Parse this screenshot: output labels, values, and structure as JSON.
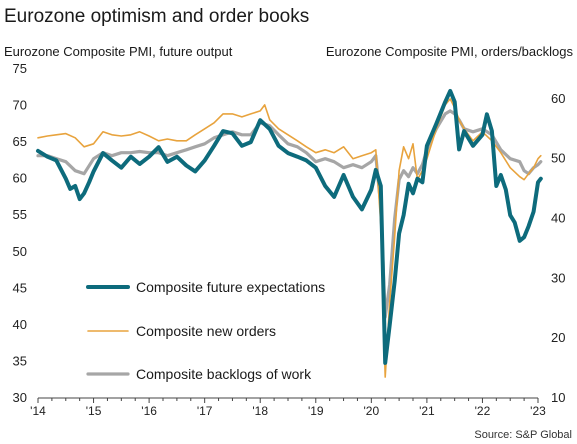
{
  "chart_data": {
    "type": "line",
    "title": "Eurozone optimism and order books",
    "left_axis_label": "Eurozone Composite PMI, future output",
    "right_axis_label": "Eurozone Composite PMI, orders/backlogs",
    "source": "Source: S&P Global",
    "left_ylim": [
      30,
      75
    ],
    "left_ticks": [
      "75",
      "70",
      "65",
      "60",
      "55",
      "50",
      "45",
      "40",
      "35",
      "30"
    ],
    "right_ylim": [
      10,
      65
    ],
    "right_ticks": [
      "60",
      "50",
      "40",
      "30",
      "20",
      "10"
    ],
    "x_ticks": [
      "'14",
      "'15",
      "'16",
      "'17",
      "'18",
      "'19",
      "'20",
      "'21",
      "'22",
      "'23"
    ],
    "grid": false,
    "legend_position": "lower-left",
    "series": [
      {
        "name": "Composite future expectations",
        "axis": "left",
        "color": "#0d6b7c",
        "x": [
          2014.0,
          2014.17,
          2014.33,
          2014.5,
          2014.58,
          2014.67,
          2014.75,
          2014.83,
          2014.92,
          2015.0,
          2015.17,
          2015.33,
          2015.5,
          2015.67,
          2015.83,
          2016.0,
          2016.17,
          2016.33,
          2016.5,
          2016.67,
          2016.83,
          2017.0,
          2017.17,
          2017.33,
          2017.5,
          2017.67,
          2017.83,
          2018.0,
          2018.17,
          2018.33,
          2018.5,
          2018.67,
          2018.83,
          2019.0,
          2019.17,
          2019.33,
          2019.5,
          2019.67,
          2019.83,
          2020.0,
          2020.08,
          2020.17,
          2020.25,
          2020.33,
          2020.42,
          2020.5,
          2020.58,
          2020.67,
          2020.75,
          2020.83,
          2020.92,
          2021.0,
          2021.17,
          2021.33,
          2021.42,
          2021.5,
          2021.58,
          2021.67,
          2021.83,
          2022.0,
          2022.08,
          2022.17,
          2022.25,
          2022.33,
          2022.42,
          2022.5,
          2022.58,
          2022.67,
          2022.75,
          2022.83,
          2022.92,
          2023.0,
          2023.05
        ],
        "values": [
          63.8,
          63.0,
          62.5,
          60.0,
          58.6,
          59.0,
          57.2,
          58.0,
          59.5,
          61.0,
          63.5,
          62.5,
          61.5,
          63.0,
          62.0,
          63.0,
          64.3,
          62.3,
          63.0,
          61.8,
          61.0,
          62.5,
          64.5,
          66.5,
          66.2,
          64.5,
          65.0,
          68.0,
          66.8,
          64.5,
          63.5,
          63.0,
          62.5,
          61.5,
          59.0,
          57.5,
          60.5,
          57.5,
          55.8,
          58.5,
          61.2,
          59.0,
          34.8,
          40.0,
          46.0,
          52.5,
          55.0,
          59.3,
          58.0,
          60.0,
          59.5,
          64.5,
          67.5,
          70.5,
          72.0,
          70.5,
          64.0,
          66.5,
          64.5,
          66.0,
          68.8,
          66.5,
          59.0,
          60.5,
          58.5,
          55.0,
          54.0,
          51.5,
          52.0,
          53.5,
          55.5,
          59.5,
          60.0
        ]
      },
      {
        "name": "Composite new orders",
        "axis": "right",
        "color": "#e8a33d",
        "x": [
          2014.0,
          2014.17,
          2014.33,
          2014.5,
          2014.67,
          2014.83,
          2015.0,
          2015.17,
          2015.33,
          2015.5,
          2015.67,
          2015.83,
          2016.0,
          2016.17,
          2016.33,
          2016.5,
          2016.67,
          2016.83,
          2017.0,
          2017.17,
          2017.33,
          2017.5,
          2017.67,
          2017.83,
          2018.0,
          2018.08,
          2018.17,
          2018.33,
          2018.5,
          2018.67,
          2018.83,
          2019.0,
          2019.17,
          2019.33,
          2019.5,
          2019.67,
          2019.83,
          2020.0,
          2020.08,
          2020.17,
          2020.25,
          2020.33,
          2020.42,
          2020.5,
          2020.58,
          2020.67,
          2020.75,
          2020.83,
          2020.92,
          2021.0,
          2021.17,
          2021.33,
          2021.42,
          2021.5,
          2021.58,
          2021.67,
          2021.83,
          2022.0,
          2022.17,
          2022.33,
          2022.5,
          2022.67,
          2022.75,
          2022.83,
          2022.92,
          2023.0,
          2023.05
        ],
        "values": [
          53.5,
          53.8,
          54.0,
          54.2,
          53.5,
          52.0,
          52.5,
          54.5,
          54.0,
          53.8,
          54.0,
          54.5,
          53.8,
          53.0,
          53.3,
          53.0,
          53.0,
          54.0,
          55.0,
          56.0,
          57.5,
          57.5,
          57.0,
          57.5,
          58.0,
          59.0,
          56.5,
          55.0,
          54.0,
          53.0,
          52.0,
          51.0,
          51.5,
          51.0,
          52.0,
          50.0,
          50.5,
          51.0,
          51.5,
          39.0,
          13.5,
          26.0,
          37.0,
          48.0,
          52.0,
          50.0,
          52.5,
          46.5,
          48.0,
          50.0,
          55.0,
          59.0,
          60.0,
          58.5,
          56.5,
          55.0,
          53.0,
          54.5,
          53.0,
          51.0,
          48.5,
          47.0,
          46.5,
          47.5,
          48.5,
          50.0,
          50.5
        ]
      },
      {
        "name": "Composite backlogs of work",
        "axis": "right",
        "color": "#a6a6a6",
        "x": [
          2014.0,
          2014.17,
          2014.33,
          2014.5,
          2014.67,
          2014.83,
          2015.0,
          2015.17,
          2015.33,
          2015.5,
          2015.67,
          2015.83,
          2016.0,
          2016.17,
          2016.33,
          2016.5,
          2016.67,
          2016.83,
          2017.0,
          2017.17,
          2017.33,
          2017.5,
          2017.67,
          2017.83,
          2018.0,
          2018.17,
          2018.33,
          2018.5,
          2018.67,
          2018.83,
          2019.0,
          2019.17,
          2019.33,
          2019.5,
          2019.67,
          2019.83,
          2020.0,
          2020.08,
          2020.17,
          2020.25,
          2020.33,
          2020.42,
          2020.5,
          2020.58,
          2020.67,
          2020.75,
          2020.83,
          2020.92,
          2021.0,
          2021.17,
          2021.33,
          2021.42,
          2021.5,
          2021.58,
          2021.67,
          2021.83,
          2022.0,
          2022.17,
          2022.33,
          2022.5,
          2022.67,
          2022.75,
          2022.83,
          2022.92,
          2023.0,
          2023.05
        ],
        "values": [
          50.5,
          50.5,
          50.0,
          49.5,
          48.0,
          47.5,
          50.0,
          51.0,
          50.5,
          51.0,
          51.0,
          51.2,
          51.0,
          51.0,
          50.5,
          51.0,
          51.5,
          52.0,
          52.5,
          53.5,
          54.0,
          54.5,
          54.0,
          54.0,
          56.0,
          55.5,
          54.0,
          52.5,
          52.0,
          51.0,
          49.5,
          50.0,
          49.5,
          48.5,
          49.0,
          48.5,
          49.5,
          50.5,
          42.0,
          23.5,
          29.0,
          40.0,
          46.5,
          48.0,
          47.0,
          48.5,
          47.5,
          49.0,
          51.5,
          55.0,
          57.5,
          58.0,
          57.5,
          56.5,
          55.0,
          54.5,
          55.0,
          54.0,
          51.5,
          50.0,
          49.5,
          48.0,
          47.5,
          48.5,
          49.0,
          49.5
        ]
      }
    ]
  }
}
